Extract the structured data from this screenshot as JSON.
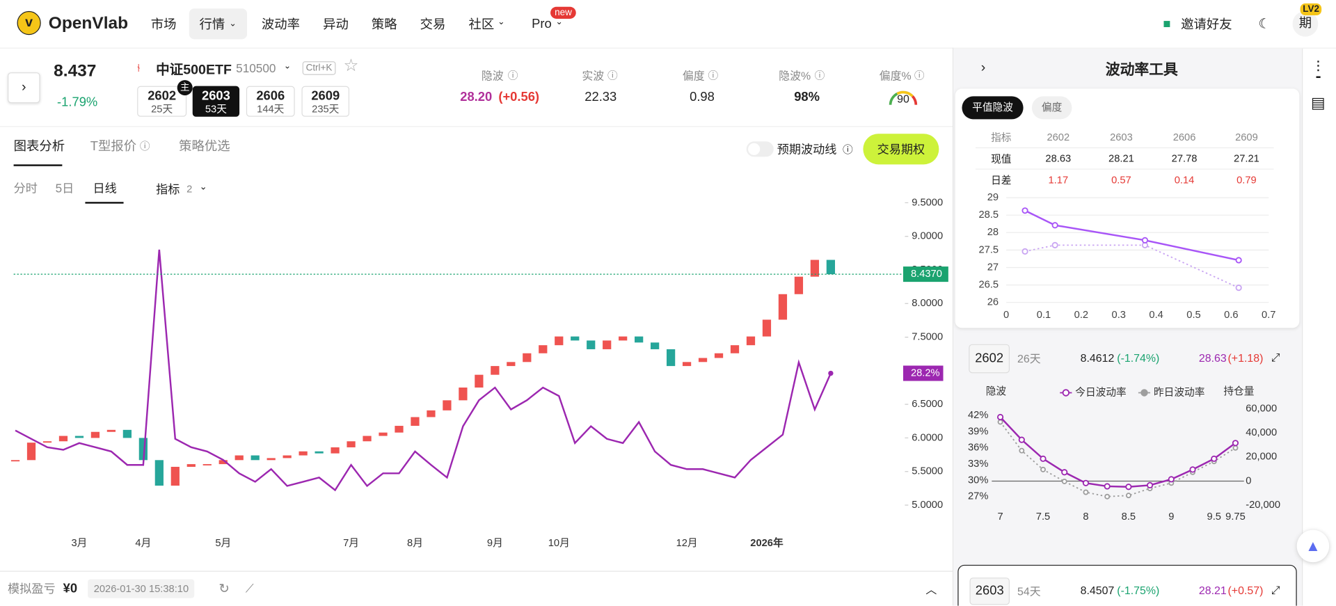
{
  "nav": {
    "brand": "OpenVlab",
    "items": [
      "市场",
      "行情",
      "波动率",
      "异动",
      "策略",
      "交易",
      "社区",
      "Pro"
    ],
    "badge": "new",
    "invite": "邀请好友",
    "avatar": "期",
    "level": "LV2"
  },
  "quote": {
    "price": "8.437",
    "change": "-1.79%",
    "name": "中证500ETF",
    "code": "510500",
    "shortcut": "Ctrl+K",
    "main_tag": "主",
    "expiries": [
      {
        "code": "2602",
        "days": "25天"
      },
      {
        "code": "2603",
        "days": "53天"
      },
      {
        "code": "2606",
        "days": "144天"
      },
      {
        "code": "2609",
        "days": "235天"
      }
    ]
  },
  "metrics": [
    {
      "label": "隐波",
      "value": "28.20",
      "delta": "(+0.56)"
    },
    {
      "label": "实波",
      "value": "22.33"
    },
    {
      "label": "偏度",
      "value": "0.98"
    },
    {
      "label": "隐波%",
      "value": "98%"
    },
    {
      "label": "偏度%",
      "value": "90"
    }
  ],
  "tabs": [
    "图表分析",
    "T型报价",
    "策略优选"
  ],
  "toggle": "预期波动线",
  "trade_button": "交易期权",
  "periods": [
    "分时",
    "5日",
    "日线"
  ],
  "indicator": {
    "label": "指标",
    "count": "2"
  },
  "footer": {
    "label": "模拟盈亏",
    "pnl": "¥0",
    "time": "2026-01-30 15:38:10"
  },
  "panel": {
    "title": "波动率工具",
    "pills": [
      "平值隐波",
      "偏度"
    ],
    "table": {
      "header": [
        "指标",
        "2602",
        "2603",
        "2606",
        "2609"
      ],
      "rows": [
        [
          "现值",
          "28.63",
          "28.21",
          "27.78",
          "27.21"
        ],
        [
          "日差",
          "1.17",
          "0.57",
          "0.14",
          "0.79"
        ]
      ]
    },
    "contracts": [
      {
        "code": "2602",
        "days": "26天",
        "price": "8.4612",
        "change": "(-1.74%)",
        "iv": "28.63",
        "iv_change": "(+1.18)"
      },
      {
        "code": "2603",
        "days": "54天",
        "price": "8.4507",
        "change": "(-1.75%)",
        "iv": "28.21",
        "iv_change": "(+0.57)"
      }
    ]
  },
  "chart_data": [
    {
      "type": "candlestick",
      "categories": [
        null,
        null,
        null,
        null,
        "3月",
        null,
        null,
        null,
        "4月",
        null,
        null,
        null,
        null,
        "5月",
        null,
        null,
        null,
        null,
        null,
        null,
        null,
        "7月",
        null,
        null,
        null,
        "8月",
        null,
        null,
        null,
        null,
        "9月",
        null,
        null,
        null,
        "10月",
        null,
        null,
        null,
        null,
        null,
        null,
        null,
        "12月",
        null,
        null,
        null,
        null,
        "2026年",
        null,
        null,
        null,
        null
      ],
      "ylim": [
        4.91,
        9.665
      ],
      "yticks": [
        {
          "value": 5,
          "label": "5.0000"
        },
        {
          "value": 5.5,
          "label": "5.5000"
        },
        {
          "value": 6,
          "label": "6.0000"
        },
        {
          "value": 6.5,
          "label": "6.5000"
        },
        {
          "value": 7,
          "label": "7.0000"
        },
        {
          "value": 7.5,
          "label": "7.5000"
        },
        {
          "value": 8,
          "label": "8.0000"
        },
        {
          "value": 8.5,
          "label": "8.5000"
        },
        {
          "value": 9,
          "label": "9.0000"
        },
        {
          "value": 9.5,
          "label": "9.5000"
        }
      ],
      "y2lim": [
        11.8,
        49.8
      ],
      "series": [
        {
          "up_color": "#ef5350",
          "down_color": "#26a69a",
          "values": [
            5.67,
            5.93,
            5.95,
            6.03,
            6.0,
            6.09,
            6.12,
            6.0,
            5.67,
            5.29,
            5.57,
            5.61,
            5.61,
            5.67,
            5.74,
            5.67,
            5.7,
            5.74,
            5.8,
            5.77,
            5.86,
            5.95,
            6.03,
            6.08,
            6.18,
            6.31,
            6.41,
            6.56,
            6.75,
            6.94,
            7.07,
            7.13,
            7.26,
            7.38,
            7.51,
            7.45,
            7.32,
            7.45,
            7.51,
            7.42,
            7.32,
            7.07,
            7.13,
            7.19,
            7.26,
            7.38,
            7.51,
            7.76,
            8.14,
            8.4,
            8.65,
            8.437
          ]
        },
        {
          "color": "#9c27b0",
          "axis": "y2",
          "values": [
            21.4,
            20.4,
            19.4,
            19.1,
            19.9,
            19.4,
            18.9,
            17.3,
            17.3,
            42.9,
            20.4,
            19.4,
            18.9,
            17.9,
            16.3,
            15.3,
            16.8,
            14.8,
            15.3,
            15.8,
            14.3,
            17.3,
            14.8,
            16.3,
            16.3,
            18.9,
            17.3,
            15.8,
            21.9,
            25.0,
            26.5,
            23.9,
            25.0,
            26.5,
            25.5,
            19.9,
            21.9,
            20.4,
            19.9,
            22.4,
            18.9,
            17.3,
            16.8,
            16.8,
            16.3,
            15.8,
            17.9,
            19.4,
            20.9,
            29.5,
            23.9,
            28.2
          ]
        }
      ],
      "price_line": {
        "value": 8.437,
        "label": "8.4370",
        "color": "#1aa36f"
      },
      "last_label": {
        "value": 28.2,
        "label": "28.2%",
        "color": "#9c27b0"
      }
    },
    {
      "type": "line",
      "xlim": [
        0,
        0.7
      ],
      "xticks": [
        0,
        0.1,
        0.2,
        0.3,
        0.4,
        0.5,
        0.6,
        0.7
      ],
      "ylim": [
        26,
        29
      ],
      "yticks": [
        26,
        26.5,
        27,
        27.5,
        28,
        28.5,
        29
      ],
      "grid": true,
      "x": [
        0.05,
        0.13,
        0.37,
        0.62
      ],
      "series": [
        {
          "color": "#a855f7",
          "values": [
            28.63,
            28.21,
            27.78,
            27.21
          ]
        },
        {
          "color": "#c9a5f2",
          "line_style": "dotted",
          "values": [
            27.46,
            27.64,
            27.64,
            26.42
          ]
        }
      ]
    },
    {
      "type": "line",
      "ylabel": "隐波",
      "y2label": "持仓量",
      "xlim": [
        6.9,
        9.85
      ],
      "xticks": [
        7,
        7.5,
        8,
        8.5,
        9,
        9.5,
        9.75
      ],
      "ylim": [
        24.3,
        44
      ],
      "yticks": [
        {
          "value": 27,
          "label": "27%"
        },
        {
          "value": 30,
          "label": "30%"
        },
        {
          "value": 33,
          "label": "33%"
        },
        {
          "value": 36,
          "label": "36%"
        },
        {
          "value": 39,
          "label": "39%"
        },
        {
          "value": 42,
          "label": "42%"
        }
      ],
      "y2lim": [
        -25000,
        63500
      ],
      "y2ticks": [
        {
          "value": -20000,
          "label": "-20,000"
        },
        0,
        {
          "value": 20000,
          "label": "20,000"
        },
        {
          "value": 40000,
          "label": "40,000"
        },
        {
          "value": 60000,
          "label": "60,000"
        }
      ],
      "x": [
        7,
        7.25,
        7.5,
        7.75,
        8,
        8.25,
        8.5,
        8.75,
        9,
        9.25,
        9.5,
        9.75
      ],
      "series": [
        {
          "name": "今日波动率",
          "color": "#9c27b0",
          "values": [
            41.7,
            37.5,
            34,
            31.5,
            29.5,
            28.9,
            28.8,
            29.1,
            30.2,
            32,
            34,
            36.9
          ]
        },
        {
          "name": "昨日波动率",
          "color": "#9e9e9e",
          "line_style": "dotted",
          "values": [
            40.8,
            35.5,
            32,
            29.8,
            27.8,
            27,
            27.2,
            28.5,
            29.5,
            31.5,
            33.5,
            36
          ]
        }
      ]
    }
  ]
}
